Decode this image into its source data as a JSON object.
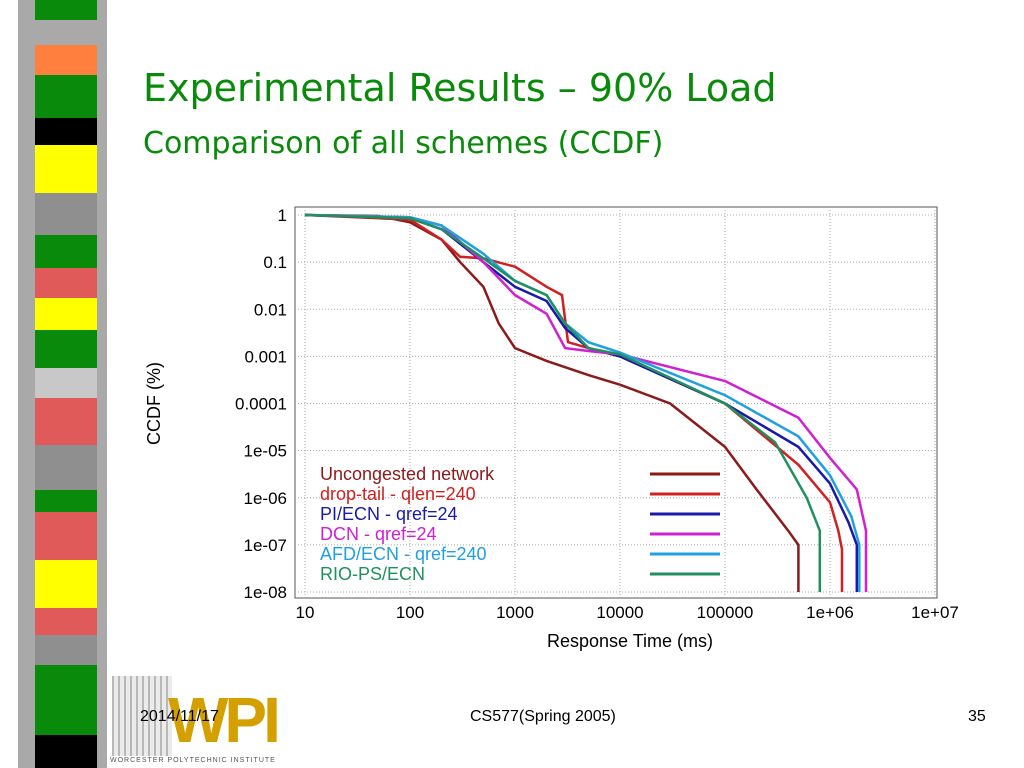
{
  "slide": {
    "title": "Experimental Results – 90% Load",
    "subtitle": "Comparison of all schemes (CCDF)",
    "date": "2014/11/17",
    "course": "CS577(Spring 2005)",
    "page_number": "35",
    "logo": "WPI",
    "logo_caption": "WORCESTER POLYTECHNIC INSTITUTE"
  },
  "chart_data": {
    "type": "line",
    "xlabel": "Response Time (ms)",
    "ylabel": "CCDF (%)",
    "xscale": "log",
    "yscale": "log",
    "grid": true,
    "legend": "lower left",
    "xlim": [
      10,
      10000000
    ],
    "ylim": [
      1e-08,
      1
    ],
    "xticks": [
      10,
      100,
      1000,
      10000,
      100000,
      {
        "value": 1000000,
        "label": "1e+06"
      },
      {
        "value": 10000000,
        "label": "1e+07"
      }
    ],
    "yticks": [
      1,
      0.1,
      0.01,
      0.001,
      0.0001,
      {
        "value": 1e-05,
        "label": "1e-05"
      },
      {
        "value": 1e-06,
        "label": "1e-06"
      },
      {
        "value": 1e-07,
        "label": "1e-07"
      },
      {
        "value": 1e-08,
        "label": "1e-08"
      }
    ],
    "series": [
      {
        "name": "Uncongested network",
        "color": "#8b1a1a",
        "x": [
          10,
          50,
          100,
          200,
          300,
          500,
          700,
          1000,
          2000,
          5000,
          10000,
          30000,
          100000,
          200000,
          400000,
          500000,
          500000
        ],
        "values": [
          1,
          0.95,
          0.7,
          0.3,
          0.1,
          0.03,
          0.005,
          0.0015,
          0.0008,
          0.0004,
          0.00025,
          0.0001,
          1.2e-05,
          1.5e-06,
          2e-07,
          1e-07,
          1e-08
        ]
      },
      {
        "name": "drop-tail - qlen=240",
        "color": "#d02020",
        "x": [
          10,
          100,
          200,
          300,
          500,
          1000,
          2000,
          2800,
          3200,
          5000,
          10000,
          100000,
          500000,
          1000000,
          1200000,
          1300000,
          1300000
        ],
        "values": [
          1,
          0.8,
          0.3,
          0.13,
          0.12,
          0.08,
          0.03,
          0.02,
          0.002,
          0.0015,
          0.001,
          0.0001,
          5e-06,
          8e-07,
          2e-07,
          8e-08,
          1e-08
        ]
      },
      {
        "name": "PI/ECN - qref=24",
        "color": "#1a1aaa",
        "x": [
          10,
          100,
          200,
          500,
          1000,
          2000,
          3000,
          5000,
          10000,
          100000,
          500000,
          1000000,
          1500000,
          1800000,
          1800000
        ],
        "values": [
          1,
          0.85,
          0.5,
          0.1,
          0.03,
          0.015,
          0.004,
          0.0015,
          0.001,
          0.0001,
          1.2e-05,
          2e-06,
          3e-07,
          1e-07,
          1e-08
        ]
      },
      {
        "name": "DCN - qref=24",
        "color": "#d020d0",
        "x": [
          10,
          100,
          200,
          500,
          1000,
          2000,
          3000,
          5000,
          10000,
          100000,
          500000,
          1000000,
          1800000,
          2200000,
          2200000
        ],
        "values": [
          1,
          0.9,
          0.6,
          0.1,
          0.02,
          0.008,
          0.0015,
          0.0013,
          0.0011,
          0.0003,
          5e-05,
          7e-06,
          1.5e-06,
          2e-07,
          1e-08
        ]
      },
      {
        "name": "AFD/ECN - qref=240",
        "color": "#20a0e0",
        "x": [
          10,
          100,
          200,
          500,
          1000,
          2000,
          3000,
          5000,
          10000,
          100000,
          500000,
          1000000,
          1600000,
          1900000,
          1900000
        ],
        "values": [
          1,
          0.9,
          0.6,
          0.15,
          0.04,
          0.02,
          0.005,
          0.002,
          0.0012,
          0.00015,
          2e-05,
          3e-06,
          4e-07,
          1e-07,
          1e-08
        ]
      },
      {
        "name": "RIO-PS/ECN",
        "color": "#209060",
        "x": [
          10,
          100,
          200,
          500,
          1000,
          2000,
          3000,
          5000,
          10000,
          100000,
          300000,
          600000,
          800000,
          800000
        ],
        "values": [
          1,
          0.85,
          0.5,
          0.12,
          0.04,
          0.02,
          0.005,
          0.0015,
          0.0011,
          0.0001,
          1.5e-05,
          1e-06,
          2e-07,
          1e-08
        ]
      }
    ]
  }
}
